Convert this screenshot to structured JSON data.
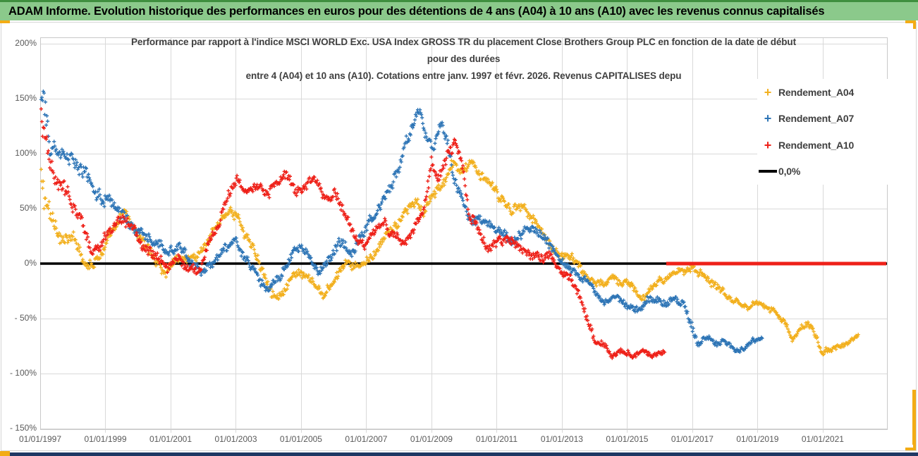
{
  "banner": {
    "title": "ADAM Informe. Evolution historique des performances en euros pour des détentions de 4 ans (A04) à 10 ans (A10) avec les revenus connus capitalisés"
  },
  "chart": {
    "title_lines": [
      "Performance par rapport à l'indice MSCI WORLD Exc. USA Index GROSS TR  du placement Close Brothers Group PLC en fonction de la date de début",
      "pour des durées",
      "entre 4 (A04) et 10 ans (A10). Cotations entre janv. 1997 et févr. 2026. Revenus CAPITALISES depu"
    ],
    "legend": {
      "items": [
        {
          "label": "Rendement_A04",
          "color": "#F2B01E",
          "marker": "plus"
        },
        {
          "label": "Rendement_A07",
          "color": "#2E75B6",
          "marker": "plus"
        },
        {
          "label": "Rendement_A10",
          "color": "#EE2119",
          "marker": "plus"
        },
        {
          "label": "0,0%",
          "color": "#000000",
          "marker": "line"
        }
      ]
    },
    "colors": {
      "gridline": "#D9D9D9",
      "plot_border": "#C9C9C9",
      "axis_text": "#595959",
      "title_text": "#3F3F3F",
      "banner_green": "#8BC98B",
      "accent_gold": "#F3AC15",
      "bottom_bar_navy": "#1F3864",
      "zero_line": "#000000"
    }
  },
  "chart_data": {
    "type": "scatter",
    "title": "Performance par rapport à l'indice MSCI WORLD Exc. USA Index GROSS TR du placement Close Brothers Group PLC en fonction de la date de début pour des durées entre 4 (A04) et 10 ans (A10). Cotations entre janv. 1997 et févr. 2026. Revenus CAPITALISES depu",
    "marker": "plus",
    "sampling_step_years": 0.022,
    "x_axis": {
      "start_year": 1997.0,
      "end_year": 2022.97,
      "tick_years": [
        1997,
        1999,
        2001,
        2003,
        2005,
        2007,
        2009,
        2011,
        2013,
        2015,
        2017,
        2019,
        2021
      ],
      "tick_labels": [
        "01/01/1997",
        "01/01/1999",
        "01/01/2001",
        "01/01/2003",
        "01/01/2005",
        "01/01/2007",
        "01/01/2009",
        "01/01/2011",
        "01/01/2013",
        "01/01/2015",
        "01/01/2017",
        "01/01/2019",
        "01/01/2021"
      ]
    },
    "y_axis": {
      "min": -150,
      "max": 200,
      "unit": "%",
      "gridline_step": 50,
      "tick_values": [
        200,
        150,
        100,
        50,
        0,
        -50,
        -100,
        -150
      ],
      "tick_labels": [
        "200%",
        "150%",
        "100%",
        "50%",
        "0%",
        "- 50%",
        "- 100%",
        "- 150%"
      ]
    },
    "zero_line": {
      "label": "0,0%",
      "value": 0,
      "color": "#000000"
    },
    "incomplete_periods_segment": {
      "series": "Rendement_A10",
      "value": 0,
      "from_year": 2016.2,
      "to_year": 2022.95,
      "color": "#EE2119"
    },
    "series": [
      {
        "name": "Rendement_A04",
        "color": "#F2B01E",
        "waypoints": [
          [
            1997.03,
            70,
            35
          ],
          [
            1997.3,
            38,
            15
          ],
          [
            1997.7,
            25,
            10
          ],
          [
            1998.1,
            18,
            9
          ],
          [
            1998.5,
            0,
            9
          ],
          [
            1998.9,
            15,
            8
          ],
          [
            1999.3,
            28,
            8
          ],
          [
            1999.6,
            45,
            8
          ],
          [
            2000.0,
            25,
            8
          ],
          [
            2000.4,
            10,
            8
          ],
          [
            2000.85,
            -6,
            8
          ],
          [
            2001.2,
            8,
            8
          ],
          [
            2001.6,
            5,
            8
          ],
          [
            2002.0,
            14,
            8
          ],
          [
            2002.4,
            30,
            8
          ],
          [
            2002.8,
            52,
            8
          ],
          [
            2003.1,
            40,
            8
          ],
          [
            2003.5,
            15,
            8
          ],
          [
            2003.8,
            -5,
            7
          ],
          [
            2004.2,
            -25,
            7
          ],
          [
            2004.6,
            -20,
            7
          ],
          [
            2004.9,
            -10,
            7
          ],
          [
            2005.3,
            -20,
            7
          ],
          [
            2005.7,
            -30,
            7
          ],
          [
            2006.1,
            -15,
            7
          ],
          [
            2006.4,
            0,
            7
          ],
          [
            2006.7,
            -8,
            7
          ],
          [
            2007.0,
            0,
            7
          ],
          [
            2007.4,
            14,
            7
          ],
          [
            2007.8,
            30,
            7
          ],
          [
            2008.2,
            45,
            8
          ],
          [
            2008.5,
            56,
            8
          ],
          [
            2008.75,
            45,
            8
          ],
          [
            2009.0,
            58,
            8
          ],
          [
            2009.4,
            75,
            8
          ],
          [
            2009.7,
            90,
            8
          ],
          [
            2009.95,
            82,
            8
          ],
          [
            2010.2,
            95,
            8
          ],
          [
            2010.5,
            78,
            8
          ],
          [
            2010.8,
            68,
            8
          ],
          [
            2011.1,
            58,
            8
          ],
          [
            2011.45,
            46,
            8
          ],
          [
            2011.8,
            58,
            8
          ],
          [
            2012.2,
            40,
            8
          ],
          [
            2012.6,
            20,
            7
          ],
          [
            2012.95,
            4,
            6
          ],
          [
            2013.3,
            9,
            6
          ],
          [
            2013.6,
            -4,
            6
          ],
          [
            2013.9,
            -15,
            6
          ],
          [
            2014.2,
            -18,
            6
          ],
          [
            2014.6,
            -7,
            6
          ],
          [
            2015.0,
            -17,
            6
          ],
          [
            2015.4,
            -33,
            6
          ],
          [
            2015.8,
            -20,
            6
          ],
          [
            2016.3,
            -16,
            6
          ],
          [
            2016.7,
            -10,
            6
          ],
          [
            2017.0,
            0,
            6
          ],
          [
            2017.35,
            -9,
            6
          ],
          [
            2017.7,
            -16,
            6
          ],
          [
            2018.1,
            -26,
            6
          ],
          [
            2018.5,
            -34,
            5
          ],
          [
            2018.8,
            -39,
            5
          ],
          [
            2019.1,
            -33,
            5
          ],
          [
            2019.45,
            -41,
            5
          ],
          [
            2019.8,
            -50,
            5
          ],
          [
            2020.05,
            -70,
            5
          ],
          [
            2020.3,
            -62,
            5
          ],
          [
            2020.55,
            -55,
            5
          ],
          [
            2020.8,
            -65,
            5
          ],
          [
            2021.0,
            -83,
            4
          ],
          [
            2021.35,
            -77,
            4
          ],
          [
            2021.7,
            -72,
            4
          ],
          [
            2022.1,
            -67,
            4
          ]
        ]
      },
      {
        "name": "Rendement_A07",
        "color": "#2E75B6",
        "waypoints": [
          [
            1997.03,
            150,
            35
          ],
          [
            1997.3,
            115,
            18
          ],
          [
            1997.7,
            95,
            14
          ],
          [
            1998.1,
            90,
            13
          ],
          [
            1998.5,
            75,
            12
          ],
          [
            1999.0,
            55,
            11
          ],
          [
            1999.5,
            47,
            10
          ],
          [
            2000.0,
            33,
            9
          ],
          [
            2000.45,
            20,
            8
          ],
          [
            2000.9,
            8,
            8
          ],
          [
            2001.25,
            18,
            8
          ],
          [
            2001.6,
            0,
            8
          ],
          [
            2001.95,
            -10,
            8
          ],
          [
            2002.3,
            3,
            8
          ],
          [
            2002.7,
            12,
            8
          ],
          [
            2003.0,
            22,
            8
          ],
          [
            2003.35,
            5,
            7
          ],
          [
            2003.7,
            -15,
            7
          ],
          [
            2004.05,
            -20,
            7
          ],
          [
            2004.4,
            -8,
            7
          ],
          [
            2004.75,
            10,
            7
          ],
          [
            2005.0,
            15,
            7
          ],
          [
            2005.3,
            3,
            7
          ],
          [
            2005.6,
            -5,
            7
          ],
          [
            2005.95,
            7,
            7
          ],
          [
            2006.2,
            18,
            7
          ],
          [
            2006.5,
            8,
            7
          ],
          [
            2006.8,
            22,
            7
          ],
          [
            2007.1,
            38,
            8
          ],
          [
            2007.45,
            52,
            8
          ],
          [
            2007.8,
            70,
            9
          ],
          [
            2008.1,
            95,
            10
          ],
          [
            2008.4,
            125,
            12
          ],
          [
            2008.6,
            142,
            10
          ],
          [
            2008.85,
            118,
            10
          ],
          [
            2009.05,
            103,
            10
          ],
          [
            2009.3,
            127,
            8
          ],
          [
            2009.55,
            98,
            9
          ],
          [
            2009.8,
            72,
            8
          ],
          [
            2010.1,
            48,
            8
          ],
          [
            2010.45,
            40,
            7
          ],
          [
            2010.8,
            34,
            7
          ],
          [
            2011.1,
            27,
            7
          ],
          [
            2011.4,
            21,
            7
          ],
          [
            2011.75,
            29,
            7
          ],
          [
            2012.1,
            33,
            7
          ],
          [
            2012.4,
            24,
            7
          ],
          [
            2012.7,
            15,
            7
          ],
          [
            2012.95,
            4,
            6
          ],
          [
            2013.25,
            -6,
            6
          ],
          [
            2013.6,
            -14,
            6
          ],
          [
            2013.9,
            -26,
            6
          ],
          [
            2014.25,
            -34,
            6
          ],
          [
            2014.6,
            -27,
            6
          ],
          [
            2014.9,
            -32,
            6
          ],
          [
            2015.2,
            -43,
            6
          ],
          [
            2015.55,
            -38,
            6
          ],
          [
            2015.9,
            -34,
            6
          ],
          [
            2016.2,
            -39,
            6
          ],
          [
            2016.5,
            -33,
            6
          ],
          [
            2016.8,
            -42,
            8
          ],
          [
            2017.0,
            -62,
            10
          ],
          [
            2017.2,
            -72,
            6
          ],
          [
            2017.5,
            -68,
            5
          ],
          [
            2017.8,
            -74,
            5
          ],
          [
            2018.05,
            -70,
            5
          ],
          [
            2018.35,
            -80,
            4
          ],
          [
            2018.65,
            -76,
            4
          ],
          [
            2018.9,
            -72,
            4
          ],
          [
            2019.15,
            -70,
            4
          ]
        ]
      },
      {
        "name": "Rendement_A10",
        "color": "#EE2119",
        "waypoints": [
          [
            1997.03,
            132,
            28
          ],
          [
            1997.3,
            92,
            15
          ],
          [
            1997.6,
            70,
            12
          ],
          [
            1997.9,
            58,
            11
          ],
          [
            1998.2,
            42,
            10
          ],
          [
            1998.6,
            8,
            9
          ],
          [
            1998.9,
            18,
            9
          ],
          [
            1999.2,
            32,
            8
          ],
          [
            1999.5,
            45,
            8
          ],
          [
            1999.8,
            38,
            8
          ],
          [
            2000.1,
            25,
            8
          ],
          [
            2000.5,
            8,
            8
          ],
          [
            2000.9,
            -8,
            8
          ],
          [
            2001.2,
            10,
            8
          ],
          [
            2001.5,
            0,
            8
          ],
          [
            2001.8,
            -5,
            8
          ],
          [
            2002.1,
            15,
            8
          ],
          [
            2002.5,
            40,
            8
          ],
          [
            2002.8,
            62,
            8
          ],
          [
            2003.05,
            78,
            8
          ],
          [
            2003.35,
            60,
            8
          ],
          [
            2003.65,
            68,
            8
          ],
          [
            2003.95,
            58,
            8
          ],
          [
            2004.25,
            70,
            8
          ],
          [
            2004.55,
            80,
            8
          ],
          [
            2004.85,
            62,
            8
          ],
          [
            2005.15,
            68,
            8
          ],
          [
            2005.45,
            72,
            8
          ],
          [
            2005.75,
            56,
            8
          ],
          [
            2006.05,
            64,
            8
          ],
          [
            2006.35,
            46,
            8
          ],
          [
            2006.65,
            26,
            8
          ],
          [
            2006.95,
            12,
            8
          ],
          [
            2007.25,
            28,
            8
          ],
          [
            2007.55,
            38,
            8
          ],
          [
            2007.85,
            20,
            8
          ],
          [
            2008.15,
            12,
            7
          ],
          [
            2008.45,
            26,
            7
          ],
          [
            2008.75,
            42,
            8
          ],
          [
            2009.0,
            88,
            14
          ],
          [
            2009.2,
            70,
            10
          ],
          [
            2009.45,
            92,
            10
          ],
          [
            2009.7,
            115,
            9
          ],
          [
            2009.95,
            90,
            12
          ],
          [
            2010.15,
            45,
            10
          ],
          [
            2010.45,
            30,
            8
          ],
          [
            2010.75,
            10,
            8
          ],
          [
            2011.05,
            20,
            8
          ],
          [
            2011.35,
            25,
            8
          ],
          [
            2011.65,
            10,
            8
          ],
          [
            2011.95,
            5,
            7
          ],
          [
            2012.25,
            2,
            7
          ],
          [
            2012.55,
            8,
            7
          ],
          [
            2012.85,
            -3,
            6
          ],
          [
            2013.15,
            -13,
            6
          ],
          [
            2013.45,
            -26,
            6
          ],
          [
            2013.7,
            -48,
            9
          ],
          [
            2014.0,
            -72,
            6
          ],
          [
            2014.3,
            -78,
            5
          ],
          [
            2014.55,
            -86,
            4
          ],
          [
            2014.85,
            -79,
            4
          ],
          [
            2015.15,
            -82,
            4
          ],
          [
            2015.45,
            -80,
            4
          ],
          [
            2015.75,
            -83,
            4
          ],
          [
            2016.0,
            -80,
            4
          ],
          [
            2016.15,
            -79,
            3
          ]
        ]
      }
    ]
  }
}
